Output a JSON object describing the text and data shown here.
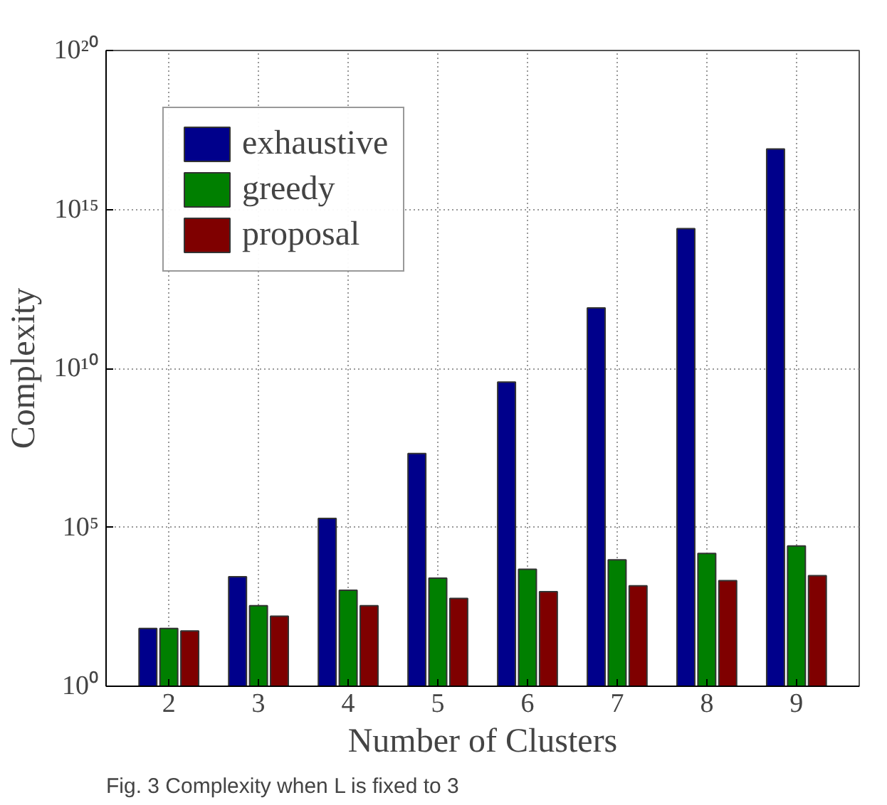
{
  "chart_data": {
    "type": "bar",
    "xlabel": "Number of Clusters",
    "ylabel": "Complexity",
    "categories": [
      "2",
      "3",
      "4",
      "5",
      "6",
      "7",
      "8",
      "9"
    ],
    "series": [
      {
        "name": "exhaustive",
        "color": "#00008b",
        "values": [
          66,
          2800,
          190000,
          21000000,
          3700000000,
          800000000000.0,
          250000000000000.0,
          8e+16
        ]
      },
      {
        "name": "greedy",
        "color": "#007f00",
        "values": [
          66,
          340,
          1050,
          2500,
          4800,
          9500,
          15000,
          26000
        ]
      },
      {
        "name": "proposal",
        "color": "#7f0000",
        "values": [
          55,
          160,
          340,
          580,
          940,
          1450,
          2100,
          3000
        ]
      }
    ],
    "log": true,
    "ylim": [
      1,
      1e+20
    ],
    "yticks": [
      {
        "value": 1,
        "label": "10⁰"
      },
      {
        "value": 100000,
        "label": "10⁵"
      },
      {
        "value": 10000000000.0,
        "label": "10¹⁰"
      },
      {
        "value": 1000000000000000.0,
        "label": "10¹⁵"
      },
      {
        "value": 1e+20,
        "label": "10²⁰"
      }
    ],
    "grid": true,
    "legend": "top left",
    "annotations": [
      "Fig. 3 Complexity when L is fixed to 3"
    ]
  }
}
